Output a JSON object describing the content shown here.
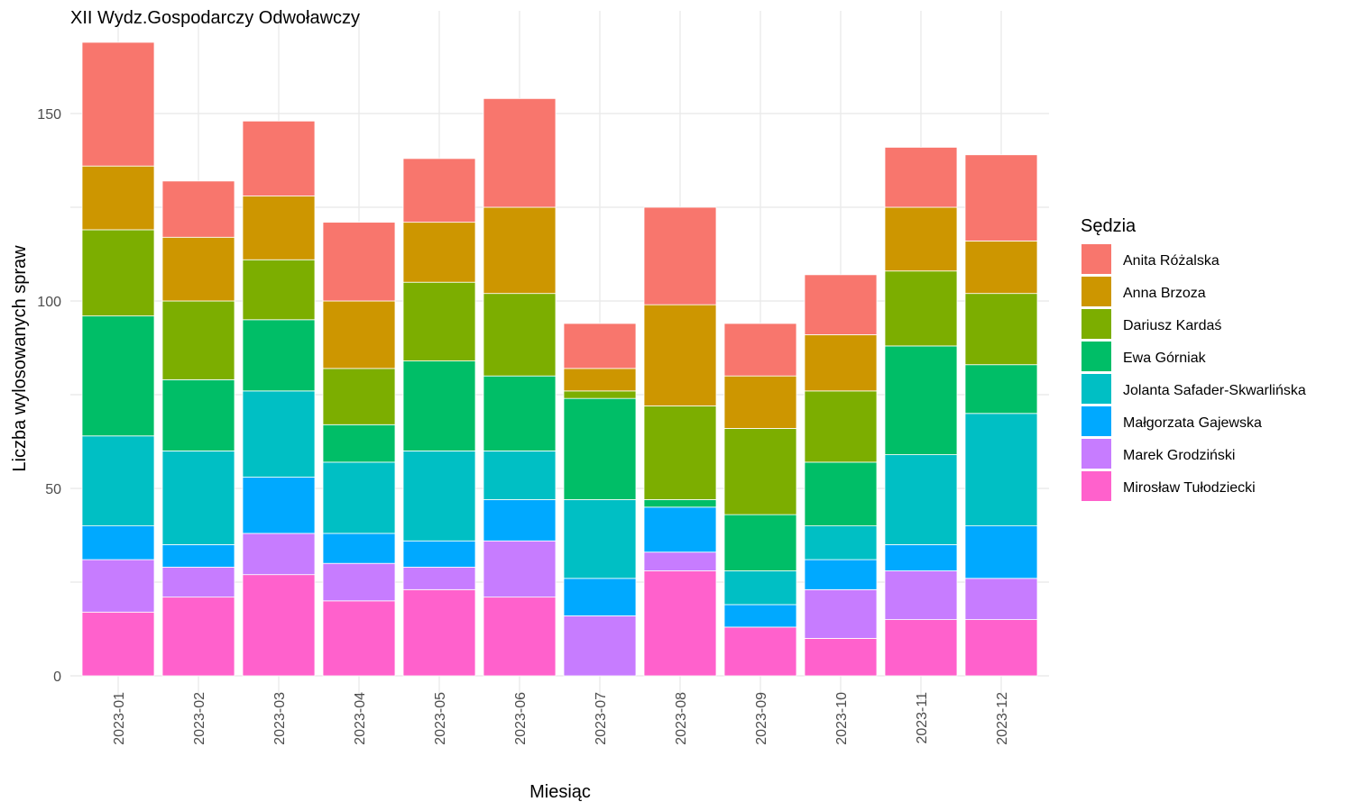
{
  "chart_data": {
    "type": "bar",
    "stacked": true,
    "title": "XII Wydz.Gospodarczy Odwoławczy",
    "xlabel": "Miesiąc",
    "ylabel": "Liczba wylosowanych spraw",
    "legend_title": "Sędzia",
    "legend_position": "right",
    "grid": true,
    "ylim": [
      0,
      170
    ],
    "yticks": [
      0,
      50,
      100,
      150
    ],
    "categories": [
      "2023-01",
      "2023-02",
      "2023-03",
      "2023-04",
      "2023-05",
      "2023-06",
      "2023-07",
      "2023-08",
      "2023-09",
      "2023-10",
      "2023-11",
      "2023-12"
    ],
    "series": [
      {
        "name": "Anita Różalska",
        "color": "#F8766D",
        "values": [
          33,
          15,
          20,
          21,
          17,
          29,
          12,
          26,
          14,
          16,
          16,
          23
        ]
      },
      {
        "name": "Anna Brzoza",
        "color": "#CD9600",
        "values": [
          17,
          17,
          17,
          18,
          16,
          23,
          6,
          27,
          14,
          15,
          17,
          14
        ]
      },
      {
        "name": "Dariusz Kardaś",
        "color": "#7CAE00",
        "values": [
          23,
          21,
          16,
          15,
          21,
          22,
          2,
          25,
          23,
          19,
          20,
          19
        ]
      },
      {
        "name": "Ewa Górniak",
        "color": "#00BE67",
        "values": [
          32,
          19,
          19,
          10,
          24,
          20,
          27,
          2,
          15,
          17,
          29,
          13
        ]
      },
      {
        "name": "Jolanta Safader-Skwarlińska",
        "color": "#00BFC4",
        "values": [
          24,
          25,
          23,
          19,
          24,
          13,
          21,
          0,
          9,
          9,
          24,
          30
        ]
      },
      {
        "name": "Małgorzata Gajewska",
        "color": "#00A9FF",
        "values": [
          9,
          6,
          15,
          8,
          7,
          11,
          10,
          12,
          6,
          8,
          7,
          14
        ]
      },
      {
        "name": "Marek Grodziński",
        "color": "#C77CFF",
        "values": [
          14,
          8,
          11,
          10,
          6,
          15,
          16,
          5,
          0,
          13,
          13,
          11
        ]
      },
      {
        "name": "Mirosław Tułodziecki",
        "color": "#FF61CC",
        "values": [
          17,
          21,
          27,
          20,
          23,
          21,
          0,
          28,
          13,
          10,
          15,
          15
        ]
      }
    ]
  }
}
